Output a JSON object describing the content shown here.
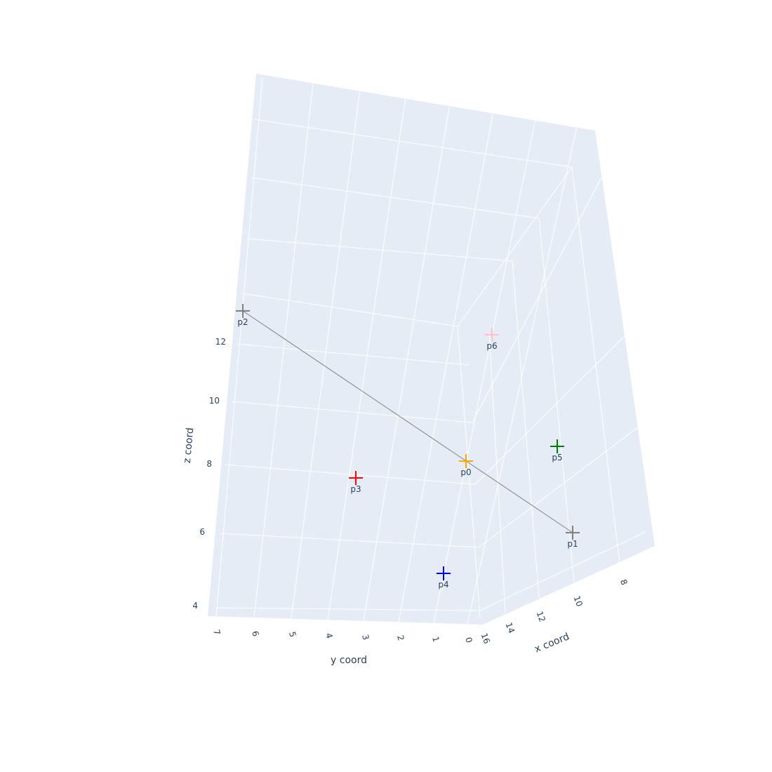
{
  "chart_data": {
    "type": "scatter",
    "chart_kind": "scatter3d",
    "x_axis": {
      "title": "x coord",
      "ticks": [
        "16",
        "14",
        "12",
        "10",
        "8"
      ]
    },
    "y_axis": {
      "title": "y coord",
      "ticks": [
        "7",
        "6",
        "5",
        "4",
        "3",
        "2",
        "1",
        "0"
      ]
    },
    "z_axis": {
      "title": "z coord",
      "ticks": [
        "12",
        "10",
        "8",
        "6",
        "4"
      ]
    },
    "grid": true,
    "background_color": "#e5ecf6",
    "points": [
      {
        "label": "p0",
        "color": "#ffa500",
        "x": 16.0,
        "y": 0.0,
        "z": 8.0
      },
      {
        "label": "p1",
        "color": "#808080",
        "x": 9.9,
        "y": -0.4,
        "z": 5.6
      },
      {
        "label": "p2",
        "color": "#808080",
        "x": 16.0,
        "y": 7.0,
        "z": 13.0
      },
      {
        "label": "p3",
        "color": "#ff0000",
        "x": 16.0,
        "y": 3.2,
        "z": 7.6
      },
      {
        "label": "p4",
        "color": "#0000ff",
        "x": 16.0,
        "y": 0.7,
        "z": 4.8
      },
      {
        "label": "p5",
        "color": "#008000",
        "x": 12.0,
        "y": -0.2,
        "z": 8.6
      },
      {
        "label": "p6",
        "color": "#ffc0cb",
        "x": 14.0,
        "y": -0.4,
        "z": 12.2
      }
    ],
    "lines": [
      {
        "from": "p2",
        "to": "p1",
        "color": "#808080"
      }
    ]
  }
}
